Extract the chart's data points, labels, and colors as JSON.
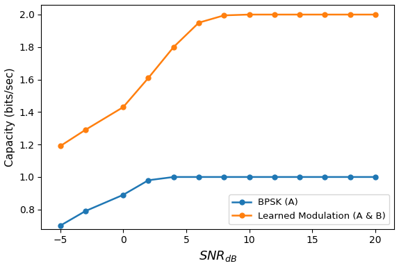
{
  "snr_values": [
    -5,
    -3,
    0,
    2,
    4,
    6,
    8,
    10,
    12,
    14,
    16,
    18,
    20
  ],
  "bpsk_capacity": [
    0.7,
    0.79,
    0.89,
    0.98,
    1.0,
    1.0,
    1.0,
    1.0,
    1.0,
    1.0,
    1.0,
    1.0,
    1.0
  ],
  "learned_capacity": [
    1.19,
    1.29,
    1.43,
    1.61,
    1.8,
    1.95,
    1.995,
    2.0,
    2.0,
    2.0,
    2.0,
    2.0,
    2.0
  ],
  "bpsk_color": "#1f77b4",
  "learned_color": "#ff7f0e",
  "ylabel": "Capacity (bits/sec)",
  "xlabel": "$SNR_{dB}$",
  "xlim": [
    -6.5,
    21.5
  ],
  "ylim": [
    0.68,
    2.06
  ],
  "xticks": [
    -5,
    0,
    5,
    10,
    15,
    20
  ],
  "yticks": [
    0.8,
    1.0,
    1.2,
    1.4,
    1.6,
    1.8,
    2.0
  ],
  "legend_bpsk": "BPSK (A)",
  "legend_learned": "Learned Modulation (A & B)",
  "marker": "o",
  "markersize": 5,
  "linewidth": 1.8
}
